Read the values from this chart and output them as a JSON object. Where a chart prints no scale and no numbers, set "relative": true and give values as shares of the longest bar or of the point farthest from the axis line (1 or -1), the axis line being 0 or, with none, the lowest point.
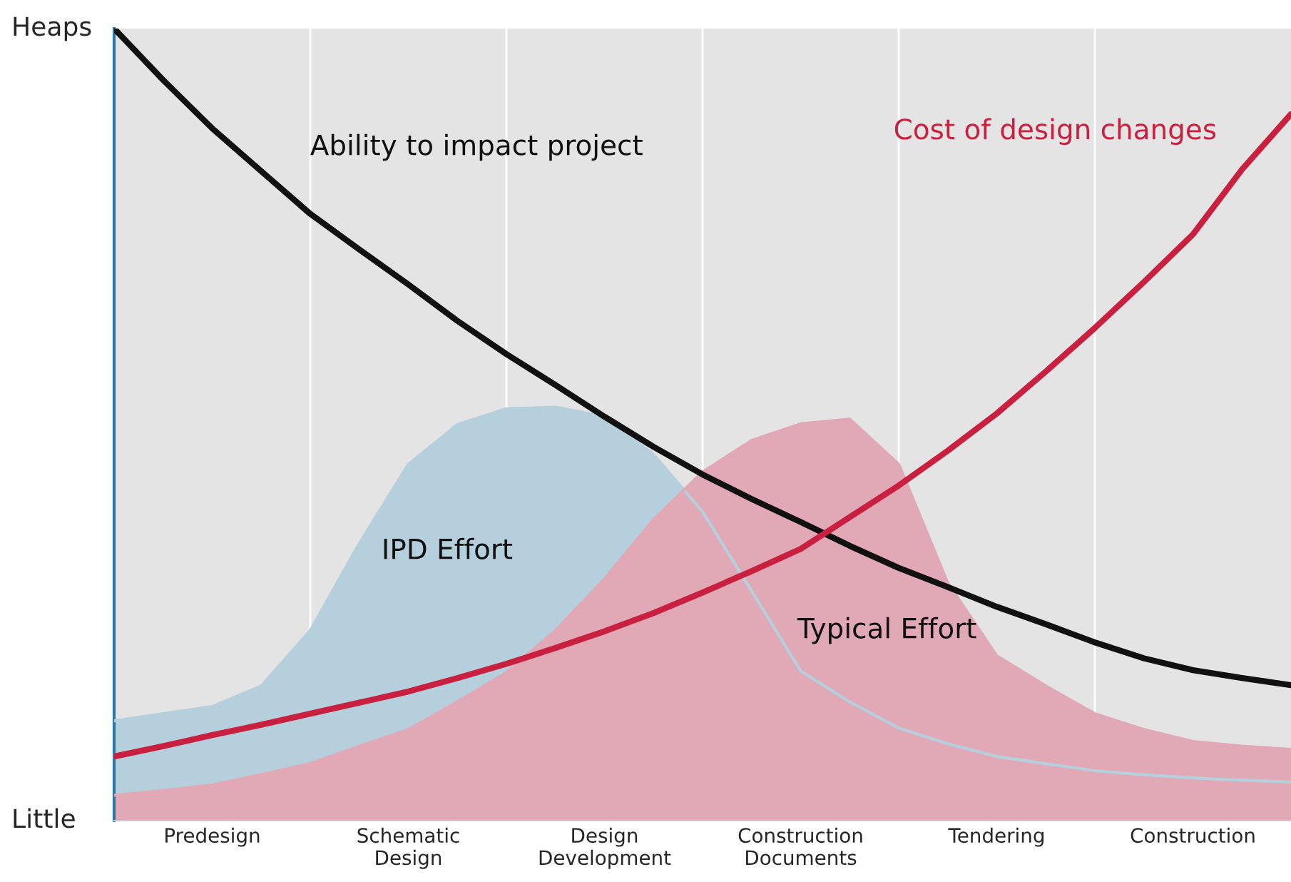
{
  "chart_data": {
    "type": "area",
    "relative": true,
    "grid": "x",
    "categories": [
      null,
      null,
      "Predesign",
      null,
      null,
      null,
      "Schematic\nDesign",
      null,
      null,
      null,
      "Design\nDevelopment",
      null,
      null,
      null,
      "Construction\nDocuments",
      null,
      null,
      null,
      "Tendering",
      null,
      null,
      null,
      "Construction",
      null,
      null
    ],
    "annotations": [
      "Heaps",
      "Little"
    ],
    "series": [
      {
        "name": "IPD Effort",
        "type": "area",
        "color": "#b5d0dc",
        "values": [
          0.126,
          0.135,
          0.144,
          0.17,
          0.24,
          0.35,
          0.45,
          0.5,
          0.52,
          0.522,
          0.51,
          0.462,
          0.39,
          0.29,
          0.189,
          0.15,
          0.117,
          0.097,
          0.081,
          0.072,
          0.063,
          0.058,
          0.054,
          0.051,
          0.049
        ]
      },
      {
        "name": "Typical Effort",
        "type": "area",
        "color": "#e0a9b5",
        "values": [
          0.032,
          0.038,
          0.045,
          0.058,
          0.072,
          0.094,
          0.115,
          0.15,
          0.187,
          0.24,
          0.305,
          0.38,
          0.44,
          0.48,
          0.501,
          0.507,
          0.45,
          0.3,
          0.208,
          0.17,
          0.135,
          0.115,
          0.1,
          0.094,
          0.09
        ]
      },
      {
        "name": "Ability to impact project",
        "type": "line",
        "color": "#111111",
        "values": [
          1.0,
          0.935,
          0.874,
          0.82,
          0.766,
          0.721,
          0.677,
          0.631,
          0.589,
          0.55,
          0.51,
          0.472,
          0.437,
          0.406,
          0.377,
          0.347,
          0.319,
          0.295,
          0.27,
          0.248,
          0.225,
          0.205,
          0.19,
          0.18,
          0.171
        ]
      },
      {
        "name": "Cost of design changes",
        "type": "line",
        "color": "#c8203e",
        "values": [
          0.081,
          0.094,
          0.108,
          0.121,
          0.135,
          0.149,
          0.163,
          0.18,
          0.198,
          0.218,
          0.239,
          0.262,
          0.288,
          0.315,
          0.343,
          0.383,
          0.423,
          0.467,
          0.514,
          0.567,
          0.622,
          0.68,
          0.74,
          0.822,
          0.892
        ]
      }
    ]
  }
}
